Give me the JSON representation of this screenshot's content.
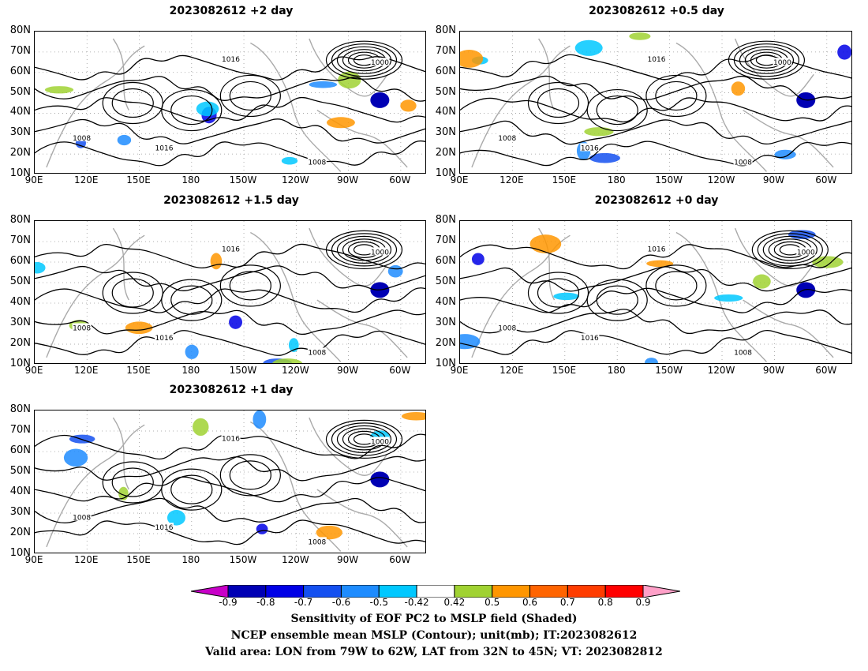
{
  "panels": [
    {
      "id": "p2",
      "title": "2023082612 +2 day"
    },
    {
      "id": "p05",
      "title": "2023082612 +0.5 day"
    },
    {
      "id": "p15",
      "title": "2023082612 +1.5 day"
    },
    {
      "id": "p0",
      "title": "2023082612 +0 day"
    },
    {
      "id": "p1",
      "title": "2023082612 +1 day"
    }
  ],
  "axes": {
    "lat_ticks": [
      "80N",
      "70N",
      "60N",
      "50N",
      "40N",
      "30N",
      "20N",
      "10N"
    ],
    "lon_ticks": [
      "90E",
      "120E",
      "150E",
      "180",
      "150W",
      "120W",
      "90W",
      "60W"
    ]
  },
  "contour_labels": [
    "1008",
    "1016",
    "1000"
  ],
  "colorbar": {
    "colors": [
      "#c800c8",
      "#0000b4",
      "#0000e6",
      "#1450f0",
      "#1e8cff",
      "#00c8ff",
      "#ffffff",
      "#a0d232",
      "#ff9600",
      "#ff6400",
      "#ff3c00",
      "#ff0000",
      "#ffa0c8"
    ],
    "ticks": [
      "-0.9",
      "-0.8",
      "-0.7",
      "-0.6",
      "-0.5",
      "-0.42",
      "0.42",
      "0.5",
      "0.6",
      "0.7",
      "0.8",
      "0.9"
    ]
  },
  "caption": {
    "line1": "Sensitivity of EOF PC2 to MSLP field (Shaded)",
    "line2": "NCEP ensemble mean MSLP (Contour); unit(mb); IT:2023082612",
    "line3": "Valid area: LON from 79W to 62W, LAT from 32N to 45N; VT: 2023082812"
  }
}
